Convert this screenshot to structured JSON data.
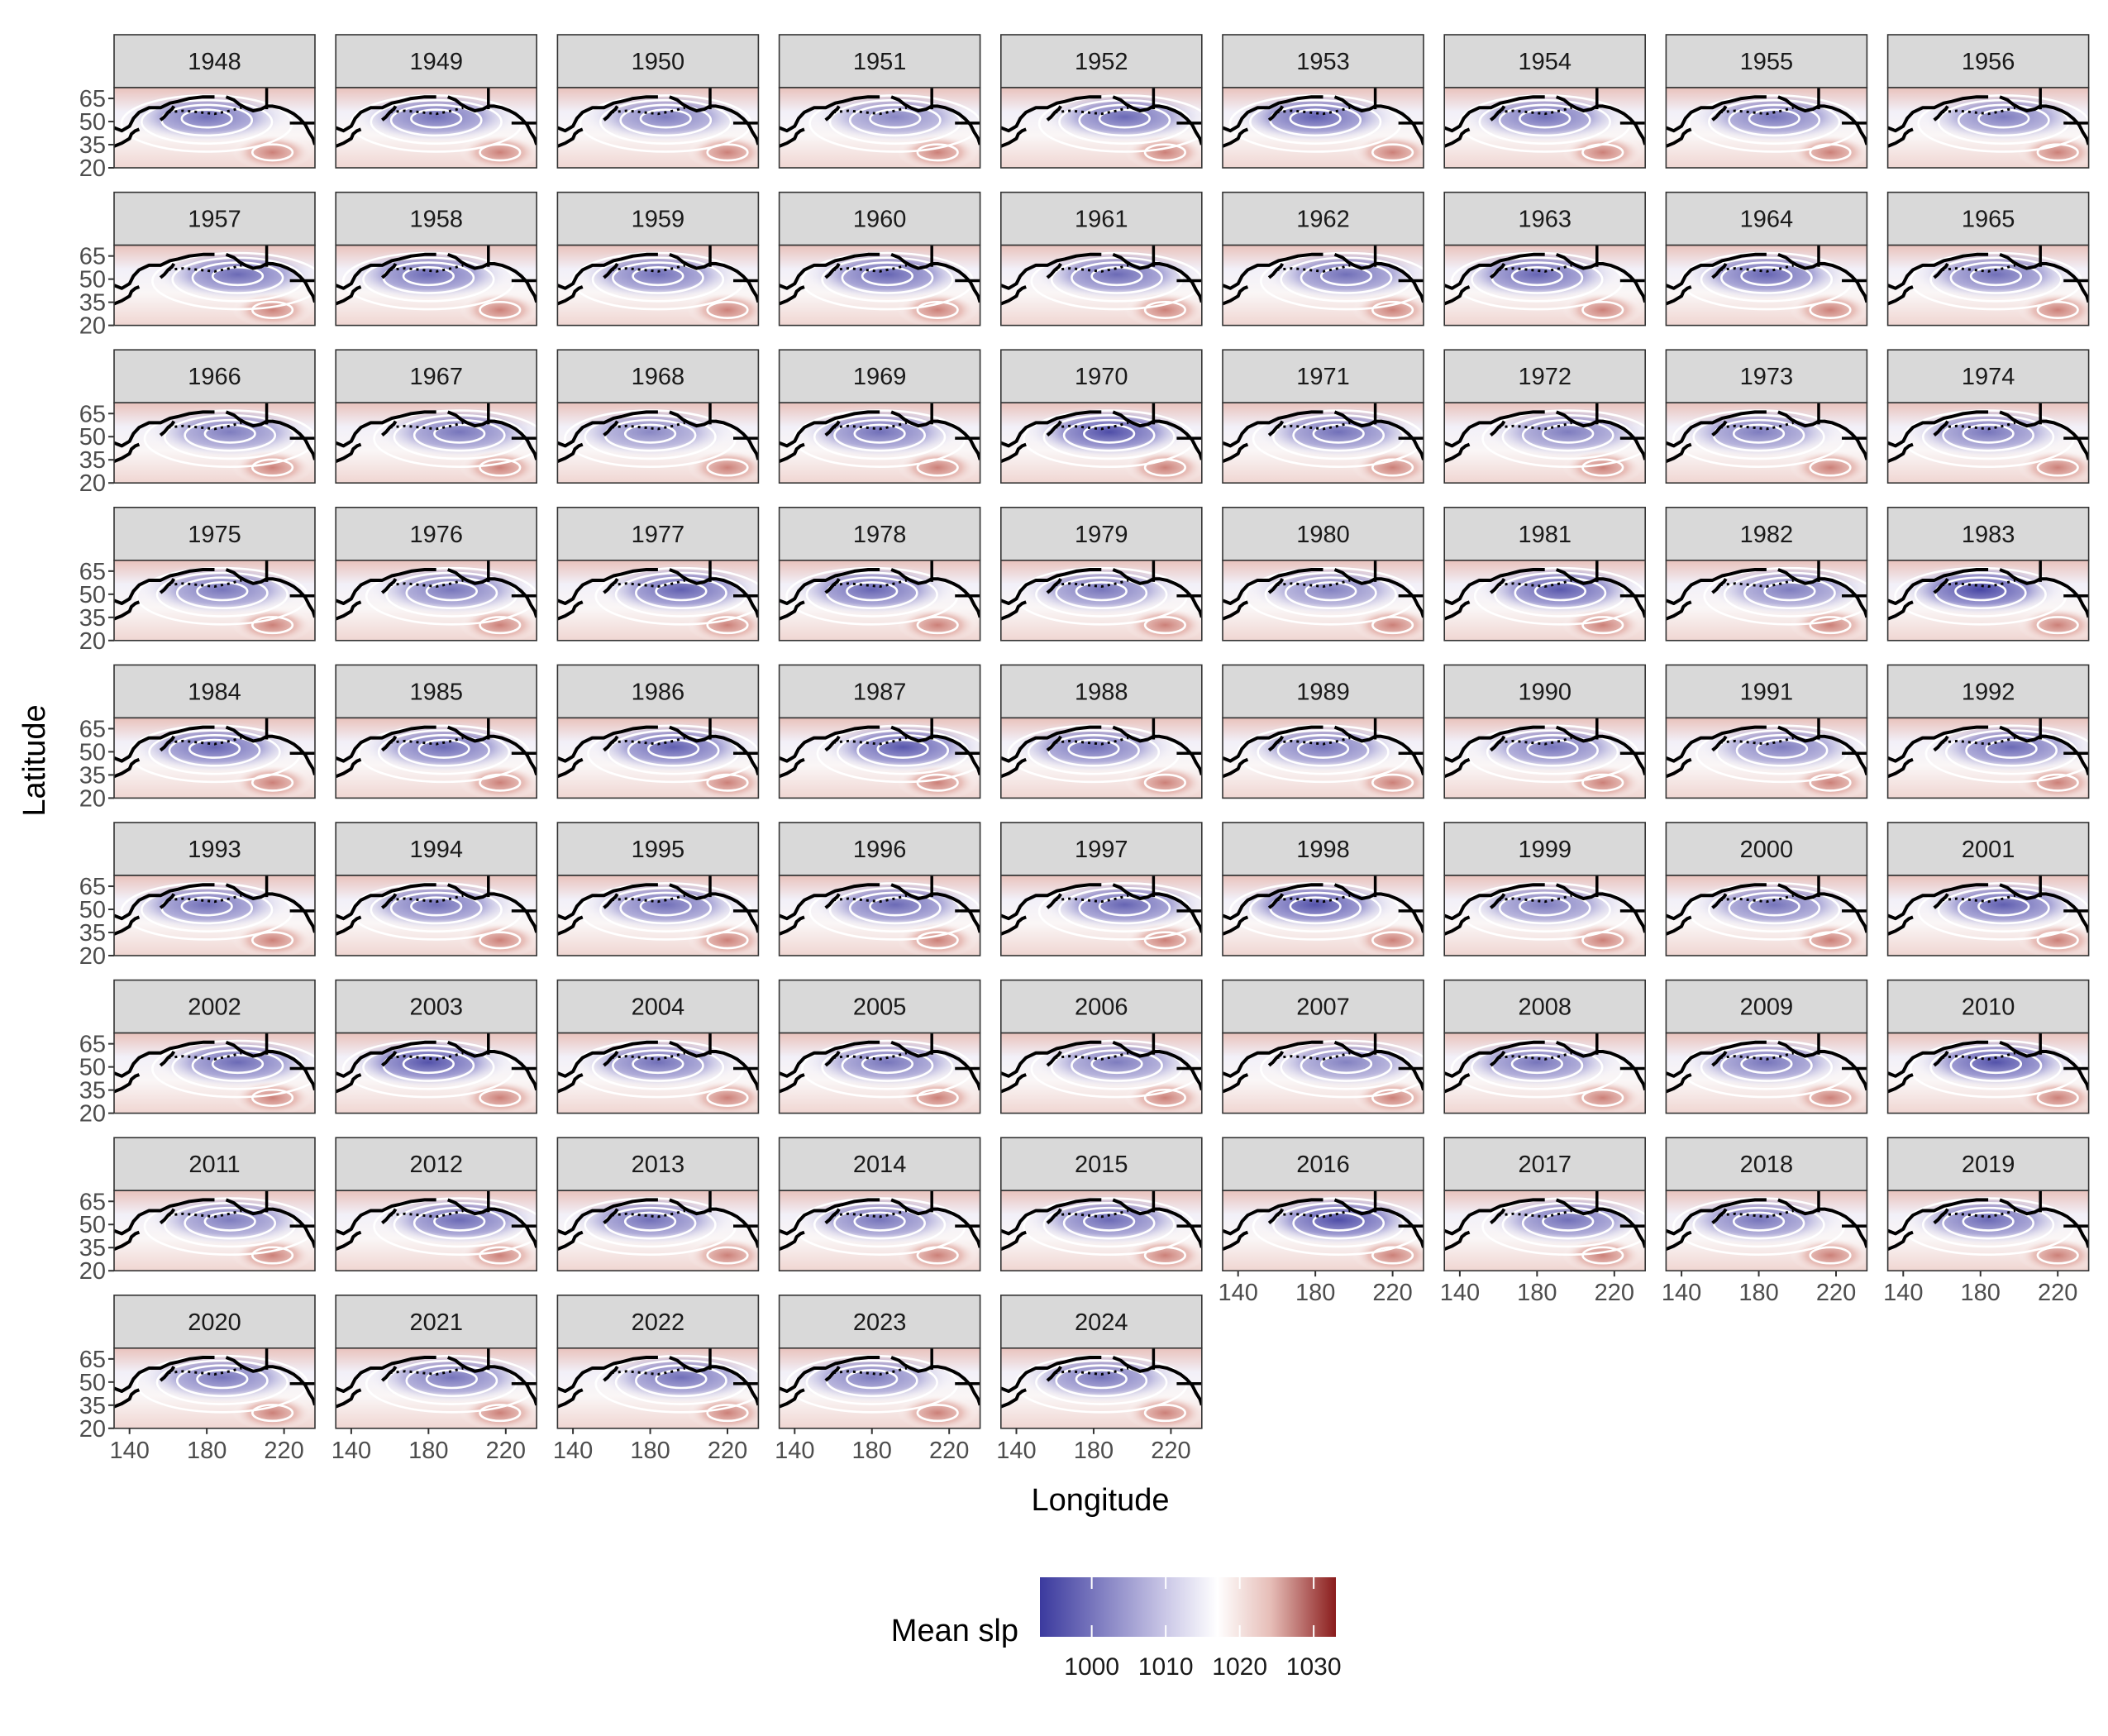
{
  "chart_data": {
    "type": "heatmap",
    "subtype": "faceted-map",
    "facet_by": "year",
    "facets": [
      "1948",
      "1949",
      "1950",
      "1951",
      "1952",
      "1953",
      "1954",
      "1955",
      "1956",
      "1957",
      "1958",
      "1959",
      "1960",
      "1961",
      "1962",
      "1963",
      "1964",
      "1965",
      "1966",
      "1967",
      "1968",
      "1969",
      "1970",
      "1971",
      "1972",
      "1973",
      "1974",
      "1975",
      "1976",
      "1977",
      "1978",
      "1979",
      "1980",
      "1981",
      "1982",
      "1983",
      "1984",
      "1985",
      "1986",
      "1987",
      "1988",
      "1989",
      "1990",
      "1991",
      "1992",
      "1993",
      "1994",
      "1995",
      "1996",
      "1997",
      "1998",
      "1999",
      "2000",
      "2001",
      "2002",
      "2003",
      "2004",
      "2005",
      "2006",
      "2007",
      "2008",
      "2009",
      "2010",
      "2011",
      "2012",
      "2013",
      "2014",
      "2015",
      "2016",
      "2017",
      "2018",
      "2019",
      "2020",
      "2021",
      "2022",
      "2023",
      "2024"
    ],
    "ncol": 9,
    "xlabel": "Longitude",
    "ylabel": "Latitude",
    "xlim": [
      132,
      236
    ],
    "ylim": [
      20,
      72
    ],
    "x_ticks": [
      140,
      180,
      220
    ],
    "y_ticks": [
      20,
      35,
      50,
      65
    ],
    "fill_variable": "Mean slp",
    "legend": {
      "title": "Mean slp",
      "placement": "bottom",
      "limits": [
        993,
        1033
      ],
      "breaks": [
        1000,
        1010,
        1020,
        1030
      ],
      "colors": {
        "low": "#3b3a9e",
        "mid": "#ffffff",
        "high": "#8a1c1c"
      },
      "midpoint": 1017
    },
    "low_intensity": [
      0.55,
      0.55,
      0.45,
      0.35,
      0.6,
      0.7,
      0.55,
      0.5,
      0.45,
      0.6,
      0.6,
      0.55,
      0.65,
      0.6,
      0.55,
      0.65,
      0.65,
      0.55,
      0.45,
      0.5,
      0.35,
      0.55,
      0.85,
      0.55,
      0.45,
      0.45,
      0.5,
      0.5,
      0.5,
      0.7,
      0.65,
      0.5,
      0.4,
      0.75,
      0.45,
      0.9,
      0.65,
      0.6,
      0.7,
      0.75,
      0.55,
      0.5,
      0.5,
      0.45,
      0.6,
      0.55,
      0.55,
      0.55,
      0.6,
      0.65,
      0.8,
      0.45,
      0.5,
      0.7,
      0.6,
      0.8,
      0.55,
      0.5,
      0.45,
      0.4,
      0.5,
      0.5,
      0.8,
      0.45,
      0.6,
      0.55,
      0.5,
      0.6,
      0.85,
      0.55,
      0.5,
      0.6,
      0.5,
      0.5,
      0.55,
      0.45,
      0.5
    ],
    "grid": false,
    "features": [
      "coastlines",
      "contour lines",
      "dotted sea-ice edge"
    ]
  },
  "colors": {
    "strip_background": "#d9d9d9",
    "panel_border": "#333333",
    "contour": "#ffffff",
    "coastline": "#000000"
  }
}
